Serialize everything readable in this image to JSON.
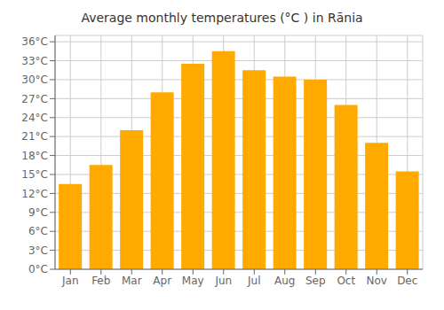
{
  "chart_data": {
    "type": "bar",
    "title": "Average monthly temperatures (°C ) in Rānia",
    "categories": [
      "Jan",
      "Feb",
      "Mar",
      "Apr",
      "May",
      "Jun",
      "Jul",
      "Aug",
      "Sep",
      "Oct",
      "Nov",
      "Dec"
    ],
    "values": [
      13.5,
      16.5,
      22.0,
      28.0,
      32.5,
      34.5,
      31.5,
      30.5,
      30.0,
      26.0,
      20.0,
      15.5
    ],
    "color": "#FFAA00",
    "ylim": [
      0,
      37
    ],
    "yticks": [
      {
        "value": 0,
        "label": "0°C"
      },
      {
        "value": 3,
        "label": "3°C"
      },
      {
        "value": 6,
        "label": "6°C"
      },
      {
        "value": 9,
        "label": "9°C"
      },
      {
        "value": 12,
        "label": "12°C"
      },
      {
        "value": 15,
        "label": "15°C"
      },
      {
        "value": 18,
        "label": "18°C"
      },
      {
        "value": 21,
        "label": "21°C"
      },
      {
        "value": 24,
        "label": "24°C"
      },
      {
        "value": 27,
        "label": "27°C"
      },
      {
        "value": 30,
        "label": "30°C"
      },
      {
        "value": 33,
        "label": "33°C"
      },
      {
        "value": 36,
        "label": "36°C"
      }
    ],
    "grid": true
  }
}
